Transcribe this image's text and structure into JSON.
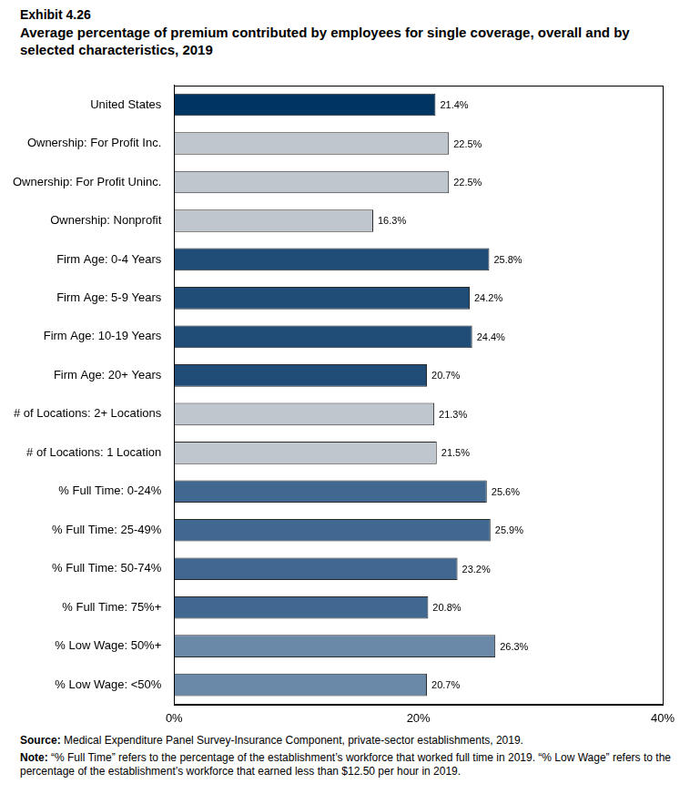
{
  "chart_data": {
    "type": "bar",
    "orientation": "horizontal",
    "title": "Exhibit 4.26",
    "subtitle": "Average percentage of premium contributed by employees for single coverage, overall and by selected characteristics, 2019",
    "categories": [
      "United States",
      "Ownership: For Profit Inc.",
      "Ownership: For Profit Uninc.",
      "Ownership: Nonprofit",
      "Firm Age: 0-4 Years",
      "Firm Age: 5-9 Years",
      "Firm Age: 10-19 Years",
      "Firm Age: 20+ Years",
      "# of Locations: 2+ Locations",
      "# of Locations: 1 Location",
      "% Full Time: 0-24%",
      "% Full Time: 25-49%",
      "% Full Time: 50-74%",
      "% Full Time: 75%+",
      "% Low Wage: 50%+",
      "% Low Wage: <50%"
    ],
    "values": [
      21.4,
      22.5,
      22.5,
      16.3,
      25.8,
      24.2,
      24.4,
      20.7,
      21.3,
      21.5,
      25.6,
      25.9,
      23.2,
      20.8,
      26.3,
      20.7
    ],
    "value_labels": [
      "21.4%",
      "22.5%",
      "22.5%",
      "16.3%",
      "25.8%",
      "24.2%",
      "24.4%",
      "20.7%",
      "21.3%",
      "21.5%",
      "25.6%",
      "25.9%",
      "23.2%",
      "20.8%",
      "26.3%",
      "20.7%"
    ],
    "colors": [
      "#003461",
      "#c0c6cd",
      "#c0c6cd",
      "#c0c6cd",
      "#204d78",
      "#204d78",
      "#204d78",
      "#204d78",
      "#c0c6cd",
      "#c0c6cd",
      "#406890",
      "#406890",
      "#406890",
      "#406890",
      "#6a89a8",
      "#6a89a8"
    ],
    "data_labels": true,
    "grid": false,
    "xlim": [
      0,
      40
    ],
    "xticks": [
      {
        "value": 0,
        "label": "0%"
      },
      {
        "value": 20,
        "label": "20%"
      },
      {
        "value": 40,
        "label": "40%"
      }
    ],
    "annotations": [
      {
        "label": "Source:",
        "text": "Medical Expenditure Panel Survey-Insurance Component, private-sector establishments, 2019."
      },
      {
        "label": "Note:",
        "text": "“% Full Time” refers to the percentage of the establishment’s workforce that worked full time in 2019. “% Low Wage” refers to the percentage of the establishment’s workforce that earned less than $12.50 per hour in 2019."
      }
    ]
  }
}
